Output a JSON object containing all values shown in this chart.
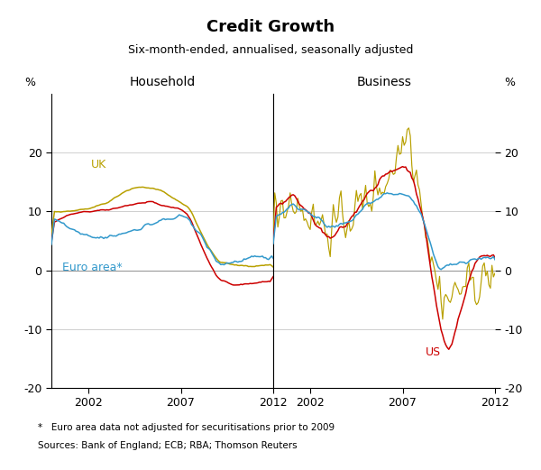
{
  "title": "Credit Growth",
  "subtitle": "Six-month-ended, annualised, seasonally adjusted",
  "panel_labels": [
    "Household",
    "Business"
  ],
  "footnote": "*   Euro area data not adjusted for securitisations prior to 2009",
  "sources": "Sources: Bank of England; ECB; RBA; Thomson Reuters",
  "colors": {
    "UK": "#b8a000",
    "US": "#cc0000",
    "Euro": "#3399cc"
  },
  "ylim": [
    -20,
    30
  ],
  "yticks": [
    -20,
    -10,
    0,
    10,
    20
  ],
  "xticks": [
    2002,
    2007,
    2012
  ],
  "xlim": [
    2000,
    2012
  ]
}
